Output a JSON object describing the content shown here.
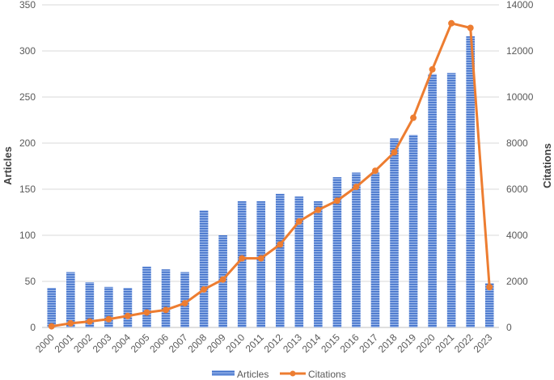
{
  "chart_data": {
    "type": "bar+line",
    "categories": [
      "2000",
      "2001",
      "2002",
      "2003",
      "2004",
      "2005",
      "2006",
      "2007",
      "2008",
      "2009",
      "2010",
      "2011",
      "2012",
      "2013",
      "2014",
      "2015",
      "2016",
      "2017",
      "2018",
      "2019",
      "2020",
      "2021",
      "2022",
      "2023"
    ],
    "series": [
      {
        "name": "Articles",
        "type": "bar",
        "axis": "left",
        "color": "#4472C4",
        "values": [
          43,
          60,
          49,
          44,
          43,
          66,
          63,
          60,
          127,
          100,
          137,
          137,
          145,
          142,
          137,
          163,
          168,
          168,
          205,
          209,
          275,
          276,
          316,
          48
        ]
      },
      {
        "name": "Citations",
        "type": "line",
        "axis": "right",
        "color": "#ED7D31",
        "values": [
          50,
          180,
          260,
          360,
          500,
          650,
          760,
          1050,
          1650,
          2080,
          3000,
          3000,
          3600,
          4600,
          5100,
          5500,
          6100,
          6800,
          7600,
          9100,
          11200,
          13200,
          13000,
          1750
        ]
      }
    ],
    "ylabel": "Articles",
    "y2label": "Citations",
    "ylim": [
      0,
      350
    ],
    "y2lim": [
      0,
      14000
    ],
    "yticks": [
      0,
      50,
      100,
      150,
      200,
      250,
      300,
      350
    ],
    "y2ticks": [
      0,
      2000,
      4000,
      6000,
      8000,
      10000,
      12000,
      14000
    ],
    "grid": true,
    "legend": "bottom-center"
  }
}
